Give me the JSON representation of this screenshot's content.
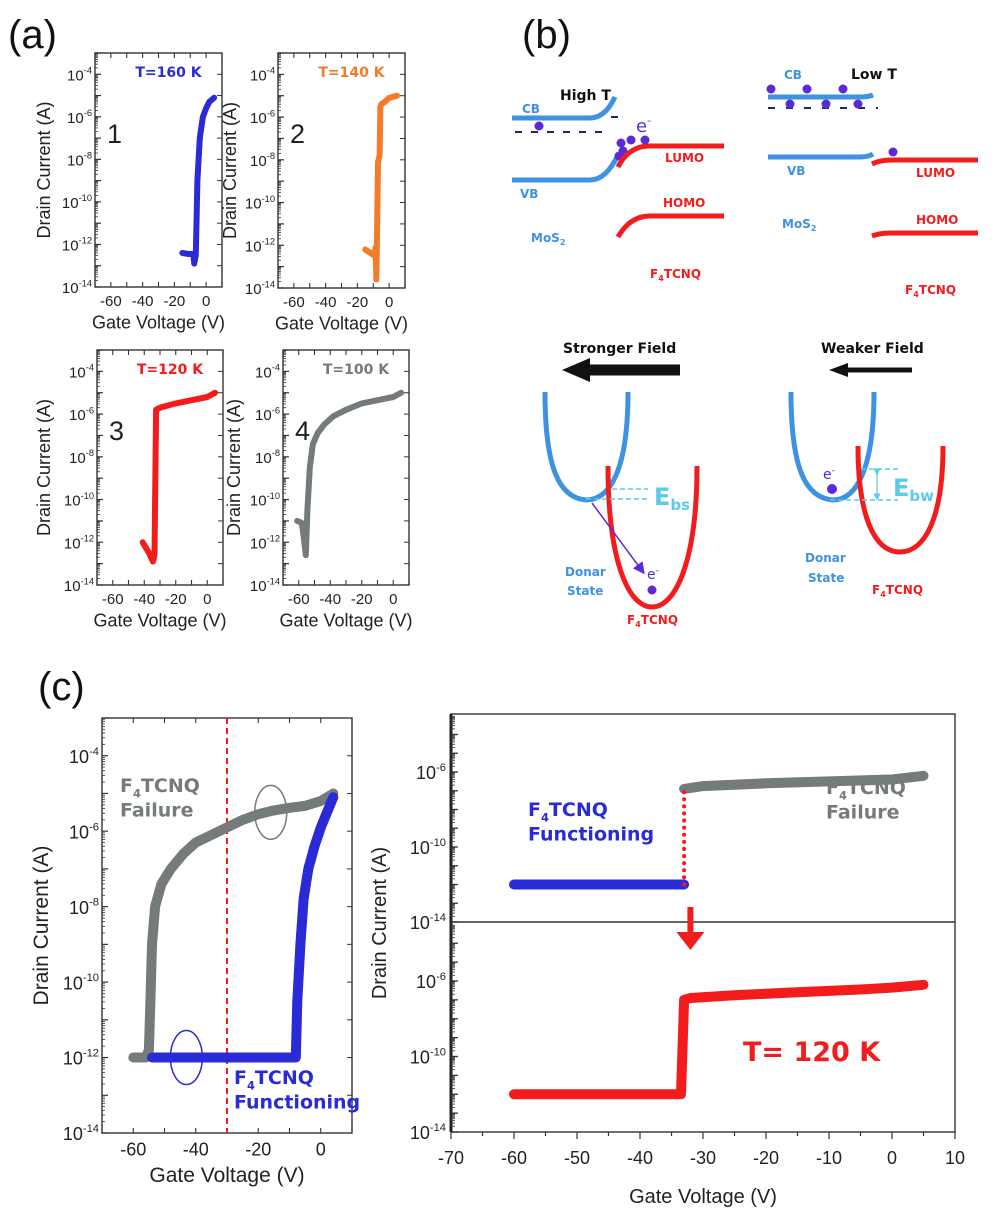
{
  "panel_labels": {
    "a": "(a)",
    "b": "(b)",
    "c": "(c)"
  },
  "colors": {
    "blue": "#2a2ad6",
    "orange": "#f57a2a",
    "red": "#f21c1c",
    "gray": "#747b7a",
    "mos2_blue": "#3f92e3",
    "light_blue": "#5ccbea",
    "electron_purple": "#5b2ad8",
    "dash_navy": "#1d2b5c"
  },
  "chart_data": [
    {
      "id": "a1",
      "type": "line",
      "title": "T=160 K",
      "panel_number": "1",
      "xlabel": "Gate Voltage (V)",
      "ylabel": "Drain Current (A)",
      "yscale": "log",
      "xlim": [
        -70,
        10
      ],
      "ylim_exp": [
        -14,
        -3
      ],
      "xticks": [
        -60,
        -40,
        -20,
        0
      ],
      "yticks_exp": [
        -4,
        -6,
        -8,
        -10,
        -12,
        -14
      ],
      "series": [
        {
          "name": "T=160 K",
          "color": "#2a2ad6",
          "x": [
            -15,
            -11,
            -8,
            -7.5,
            -6.5,
            -5.5,
            -4,
            -2,
            0,
            2,
            5
          ],
          "log_y": [
            -12.4,
            -12.45,
            -12.45,
            -12.9,
            -12.5,
            -9,
            -7,
            -6,
            -5.6,
            -5.3,
            -5.1
          ]
        }
      ]
    },
    {
      "id": "a2",
      "type": "line",
      "title": "T=140 K",
      "panel_number": "2",
      "xlabel": "Gate Voltage (V)",
      "ylabel": "Drain Current (A)",
      "yscale": "log",
      "xlim": [
        -70,
        10
      ],
      "ylim_exp": [
        -14,
        -3
      ],
      "xticks": [
        -60,
        -40,
        -20,
        0
      ],
      "yticks_exp": [
        -4,
        -6,
        -8,
        -10,
        -12,
        -14
      ],
      "series": [
        {
          "name": "T=140 K",
          "color": "#f57a2a",
          "x": [
            -15,
            -11,
            -9,
            -8.5,
            -8,
            -7,
            -6,
            -5.5,
            -5,
            -3,
            0,
            5
          ],
          "log_y": [
            -12.2,
            -12.4,
            -12.5,
            -12.1,
            -13.6,
            -8.1,
            -7.8,
            -5.5,
            -5.4,
            -5.3,
            -5.1,
            -5.0
          ]
        }
      ]
    },
    {
      "id": "a3",
      "type": "line",
      "title": "T=120 K",
      "panel_number": "3",
      "xlabel": "Gate Voltage (V)",
      "ylabel": "Drain Current (A)",
      "yscale": "log",
      "xlim": [
        -70,
        10
      ],
      "ylim_exp": [
        -14,
        -3
      ],
      "xticks": [
        -60,
        -40,
        -20,
        0
      ],
      "yticks_exp": [
        -4,
        -6,
        -8,
        -10,
        -12,
        -14
      ],
      "series": [
        {
          "name": "T=120 K",
          "color": "#f21c1c",
          "x": [
            -41,
            -37,
            -34.5,
            -33.5,
            -32.5,
            -30,
            -25,
            -20,
            -10,
            0,
            5
          ],
          "log_y": [
            -12.0,
            -12.5,
            -12.9,
            -12.6,
            -5.8,
            -5.7,
            -5.6,
            -5.5,
            -5.35,
            -5.2,
            -5.0
          ]
        }
      ]
    },
    {
      "id": "a4",
      "type": "line",
      "title": "T=100 K",
      "panel_number": "4",
      "xlabel": "Gate Voltage (V)",
      "ylabel": "Drain Current (A)",
      "yscale": "log",
      "xlim": [
        -70,
        10
      ],
      "ylim_exp": [
        -14,
        -3
      ],
      "xticks": [
        -60,
        -40,
        -20,
        0
      ],
      "yticks_exp": [
        -4,
        -6,
        -8,
        -10,
        -12,
        -14
      ],
      "series": [
        {
          "name": "T=100 K",
          "color": "#747b7a",
          "x": [
            -61,
            -58,
            -56.5,
            -55.5,
            -54.5,
            -53,
            -51,
            -48,
            -44,
            -38,
            -30,
            -20,
            -10,
            0,
            5
          ],
          "log_y": [
            -11.0,
            -11.1,
            -12.0,
            -12.6,
            -10.5,
            -8.5,
            -7.4,
            -6.9,
            -6.5,
            -6.1,
            -5.8,
            -5.5,
            -5.35,
            -5.2,
            -5.0
          ]
        }
      ]
    },
    {
      "id": "c_left",
      "type": "line",
      "xlabel": "Gate Voltage (V)",
      "ylabel": "Drain Current (A)",
      "yscale": "log",
      "xlim": [
        -70,
        10
      ],
      "ylim_exp": [
        -14,
        -3
      ],
      "xticks": [
        -60,
        -40,
        -20,
        0
      ],
      "yticks_exp": [
        -4,
        -6,
        -8,
        -10,
        -12,
        -14
      ],
      "vline_x": -30,
      "annotations": [
        {
          "text_main": "F",
          "text_sub": "4",
          "text_rest": "TCNQ",
          "line2": "Failure",
          "color": "#747b7a"
        },
        {
          "text_main": "F",
          "text_sub": "4",
          "text_rest": "TCNQ",
          "line2": "Functioning",
          "color": "#2a2ad6"
        }
      ],
      "series": [
        {
          "name": "F4TCNQ Failure",
          "color": "#747b7a",
          "x": [
            -60,
            -56,
            -55,
            -54.5,
            -54,
            -53,
            -51,
            -48,
            -44,
            -40,
            -35,
            -30,
            -25,
            -20,
            -15,
            -10,
            -5,
            0,
            4
          ],
          "log_y": [
            -12,
            -12,
            -11.8,
            -10.5,
            -9,
            -8,
            -7.4,
            -7,
            -6.6,
            -6.3,
            -6.1,
            -5.9,
            -5.7,
            -5.55,
            -5.45,
            -5.38,
            -5.33,
            -5.2,
            -5.0
          ]
        },
        {
          "name": "F4TCNQ Functioning",
          "color": "#2a2ad6",
          "x": [
            -54,
            -40,
            -20,
            -8,
            -7.5,
            -6.5,
            -5.5,
            -4,
            -2,
            0,
            2,
            4
          ],
          "log_y": [
            -12,
            -12,
            -12,
            -12,
            -10.5,
            -9,
            -7.8,
            -7,
            -6.4,
            -5.9,
            -5.5,
            -5.1
          ]
        }
      ]
    },
    {
      "id": "c_right",
      "type": "line",
      "xlabel": "Gate Voltage (V)",
      "ylabel": "Drain Current (A)",
      "yscale": "log",
      "xlim": [
        -70,
        10
      ],
      "xticks": [
        -70,
        -60,
        -50,
        -40,
        -30,
        -20,
        -10,
        0,
        10
      ],
      "top": {
        "ylim_exp": [
          -14,
          -3
        ],
        "yticks_exp": [
          -6,
          -10,
          -14
        ],
        "series": [
          {
            "name": "F4TCNQ Functioning",
            "color": "#2a2ad6",
            "x": [
              -60,
              -33
            ],
            "log_y": [
              -12,
              -12
            ]
          },
          {
            "name": "F4TCNQ Failure",
            "color": "#747b7a",
            "x": [
              -33,
              -30,
              -20,
              -10,
              0,
              5
            ],
            "log_y": [
              -6.9,
              -6.75,
              -6.6,
              -6.5,
              -6.4,
              -6.2
            ]
          },
          {
            "name": "transition",
            "color": "#f21c1c",
            "style": "dotted",
            "x": [
              -33,
              -33
            ],
            "log_y": [
              -12,
              -6.9
            ]
          }
        ],
        "annotations": [
          {
            "text_main": "F",
            "text_sub": "4",
            "text_rest": "TCNQ",
            "line2": "Functioning",
            "color": "#2a2ad6"
          },
          {
            "text_main": "F",
            "text_sub": "4",
            "text_rest": "TCNQ",
            "line2": "Failure",
            "color": "#747b7a"
          }
        ]
      },
      "bottom": {
        "ylim_exp": [
          -14,
          -3
        ],
        "yticks_exp": [
          -6,
          -10,
          -14
        ],
        "series": [
          {
            "name": "T= 120 K",
            "color": "#f21c1c",
            "x": [
              -60,
              -33.5,
              -33,
              -32,
              -25,
              -15,
              -5,
              0,
              5
            ],
            "log_y": [
              -12,
              -12,
              -7,
              -6.9,
              -6.75,
              -6.6,
              -6.45,
              -6.35,
              -6.2
            ]
          }
        ],
        "annotations": [
          {
            "text": "T= 120 K",
            "color": "#f21c1c"
          }
        ]
      }
    }
  ],
  "diagram_b": {
    "high_t": {
      "title": "High T",
      "cb": "CB",
      "vb": "VB",
      "mos2": "MoS",
      "mos2_sub": "2",
      "electron": "e",
      "electron_sup": "-",
      "lumo": "LUMO",
      "homo": "HOMO",
      "f4tcnq_main": "F",
      "f4tcnq_sub": "4",
      "f4tcnq_rest": "TCNQ"
    },
    "low_t": {
      "title": "Low T",
      "cb": "CB",
      "vb": "VB",
      "mos2": "MoS",
      "mos2_sub": "2",
      "lumo": "LUMO",
      "homo": "HOMO",
      "f4tcnq_main": "F",
      "f4tcnq_sub": "4",
      "f4tcnq_rest": "TCNQ"
    },
    "stronger": {
      "title": "Stronger Field",
      "energy_main": "E",
      "energy_sub": "bs",
      "donor1": "Donar",
      "donor2": "State",
      "electron": "e",
      "electron_sup": "-",
      "f4tcnq_main": "F",
      "f4tcnq_sub": "4",
      "f4tcnq_rest": "TCNQ"
    },
    "weaker": {
      "title": "Weaker Field",
      "energy_main": "E",
      "energy_sub": "bw",
      "donor1": "Donar",
      "donor2": "State",
      "electron": "e",
      "electron_sup": "-",
      "f4tcnq_main": "F",
      "f4tcnq_sub": "4",
      "f4tcnq_rest": "TCNQ"
    }
  }
}
